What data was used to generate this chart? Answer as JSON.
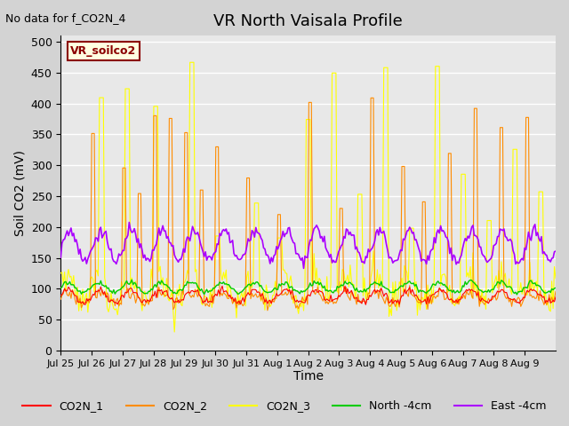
{
  "title": "VR North Vaisala Profile",
  "subtitle": "No data for f_CO2N_4",
  "ylabel": "Soil CO2 (mV)",
  "xlabel": "Time",
  "watermark": "VR_soilco2",
  "ylim": [
    0,
    510
  ],
  "yticks": [
    0,
    50,
    100,
    150,
    200,
    250,
    300,
    350,
    400,
    450,
    500
  ],
  "xtick_labels": [
    "Jul 25",
    "Jul 26",
    "Jul 27",
    "Jul 28",
    "Jul 29",
    "Jul 30",
    "Jul 31",
    "Aug 1",
    "Aug 2",
    "Aug 3",
    "Aug 4",
    "Aug 5",
    "Aug 6",
    "Aug 7",
    "Aug 8",
    "Aug 9"
  ],
  "colors": {
    "CO2N_1": "#ff0000",
    "CO2N_2": "#ff8c00",
    "CO2N_3": "#ffff00",
    "North_4cm": "#00cc00",
    "East_4cm": "#aa00ff"
  },
  "legend_labels": [
    "CO2N_1",
    "CO2N_2",
    "CO2N_3",
    "North -4cm",
    "East -4cm"
  ],
  "background_color": "#d3d3d3",
  "plot_bg_color": "#e8e8e8",
  "grid_color": "#ffffff"
}
